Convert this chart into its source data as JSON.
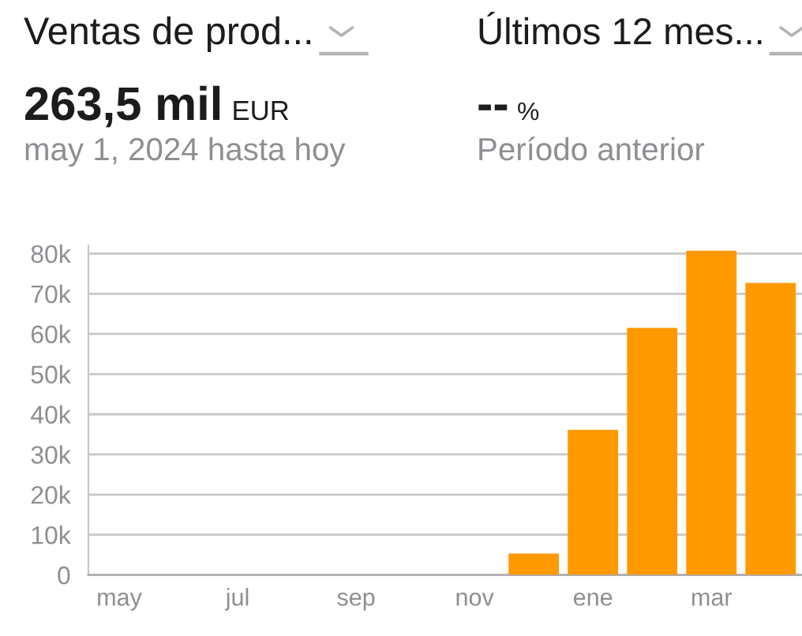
{
  "chart_data": {
    "type": "bar",
    "title": "Ventas de prod...",
    "annotations": [
      "Últimos 12 mes...",
      "263,5 mil",
      "EUR",
      "may 1, 2024 hasta hoy",
      "--",
      "%",
      "Período anterior"
    ],
    "categories": [
      "may",
      null,
      "jul",
      null,
      "sep",
      null,
      "nov",
      null,
      "ene",
      null,
      "mar",
      null
    ],
    "values": [
      0,
      0,
      0,
      0,
      0,
      0,
      0,
      5300,
      36100,
      61500,
      80700,
      72700
    ],
    "color": "#ff9900",
    "ylim": [
      0,
      82000
    ],
    "yticks": [
      0,
      {
        "value": 10000,
        "label": "10k"
      },
      {
        "value": 20000,
        "label": "20k"
      },
      {
        "value": 30000,
        "label": "30k"
      },
      {
        "value": 40000,
        "label": "40k"
      },
      {
        "value": 50000,
        "label": "50k"
      },
      {
        "value": 60000,
        "label": "60k"
      },
      {
        "value": 70000,
        "label": "70k"
      },
      {
        "value": 80000,
        "label": "80k"
      }
    ],
    "grid": "y"
  }
}
